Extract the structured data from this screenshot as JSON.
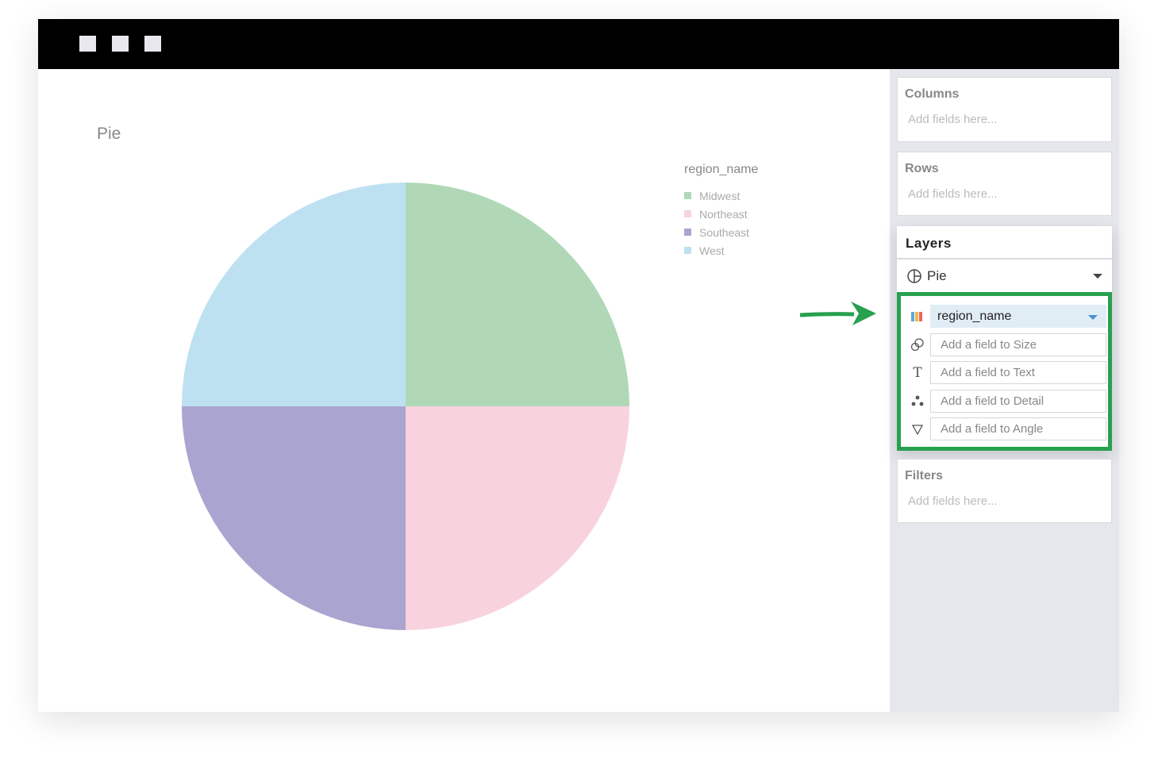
{
  "window": {
    "buttons": [
      "close",
      "minimize",
      "maximize"
    ]
  },
  "chart_data": {
    "type": "pie",
    "title": "Pie",
    "legend_title": "region_name",
    "legend_position": "right",
    "categories": [
      "Midwest",
      "Northeast",
      "Southeast",
      "West"
    ],
    "values": [
      25,
      25,
      25,
      25
    ],
    "colors": [
      "#b0d8b7",
      "#f8d3de",
      "#aaa4d0",
      "#bee1f2"
    ]
  },
  "sidebar": {
    "columns": {
      "title": "Columns",
      "placeholder": "Add fields here..."
    },
    "rows": {
      "title": "Rows",
      "placeholder": "Add fields here..."
    },
    "layers": {
      "title": "Layers",
      "type": "Pie",
      "type_icon": "pie-chart-icon",
      "color_field": "region_name",
      "encodings": [
        {
          "icon": "size-icon",
          "placeholder": "Add a field to Size"
        },
        {
          "icon": "text-icon",
          "placeholder": "Add a field to Text"
        },
        {
          "icon": "detail-icon",
          "placeholder": "Add a field to Detail"
        },
        {
          "icon": "angle-icon",
          "placeholder": "Add a field to Angle"
        }
      ]
    },
    "filters": {
      "title": "Filters",
      "placeholder": "Add fields here..."
    }
  },
  "highlight_color": "#27a04f"
}
